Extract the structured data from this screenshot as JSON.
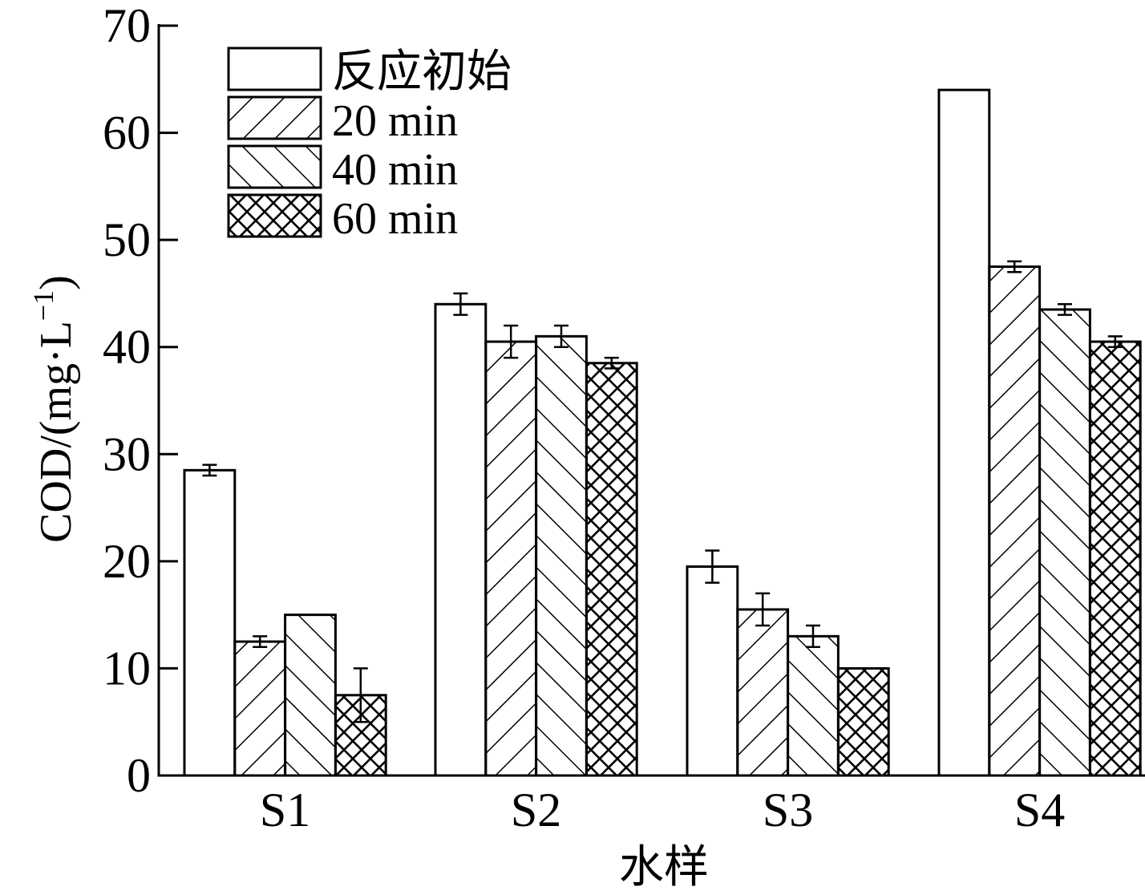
{
  "chart_data": {
    "type": "bar",
    "xlabel": "水样",
    "ylabel": "COD/(mg·L",
    "ylabel_sup": "−1",
    "ylabel_end": ")",
    "ylim": [
      0,
      70
    ],
    "yticks": [
      0,
      10,
      20,
      30,
      40,
      50,
      60,
      70
    ],
    "categories": [
      "S1",
      "S2",
      "S3",
      "S4"
    ],
    "legend_position": "top-left",
    "grid": false,
    "series": [
      {
        "name": "反应初始",
        "pattern": "none",
        "values": [
          28.5,
          44,
          19.5,
          64
        ],
        "errors": [
          0.5,
          1.0,
          1.5,
          null
        ]
      },
      {
        "name": "20 min",
        "pattern": "forward-hatch",
        "values": [
          12.5,
          40.5,
          15.5,
          47.5
        ],
        "errors": [
          0.5,
          1.5,
          1.5,
          0.5
        ]
      },
      {
        "name": "40 min",
        "pattern": "back-hatch",
        "values": [
          15,
          41,
          13,
          43.5
        ],
        "errors": [
          null,
          1.0,
          1.0,
          0.5
        ]
      },
      {
        "name": "60 min",
        "pattern": "cross-hatch",
        "values": [
          7.5,
          38.5,
          10,
          40.5
        ],
        "errors": [
          2.5,
          0.5,
          null,
          0.5
        ]
      }
    ]
  }
}
